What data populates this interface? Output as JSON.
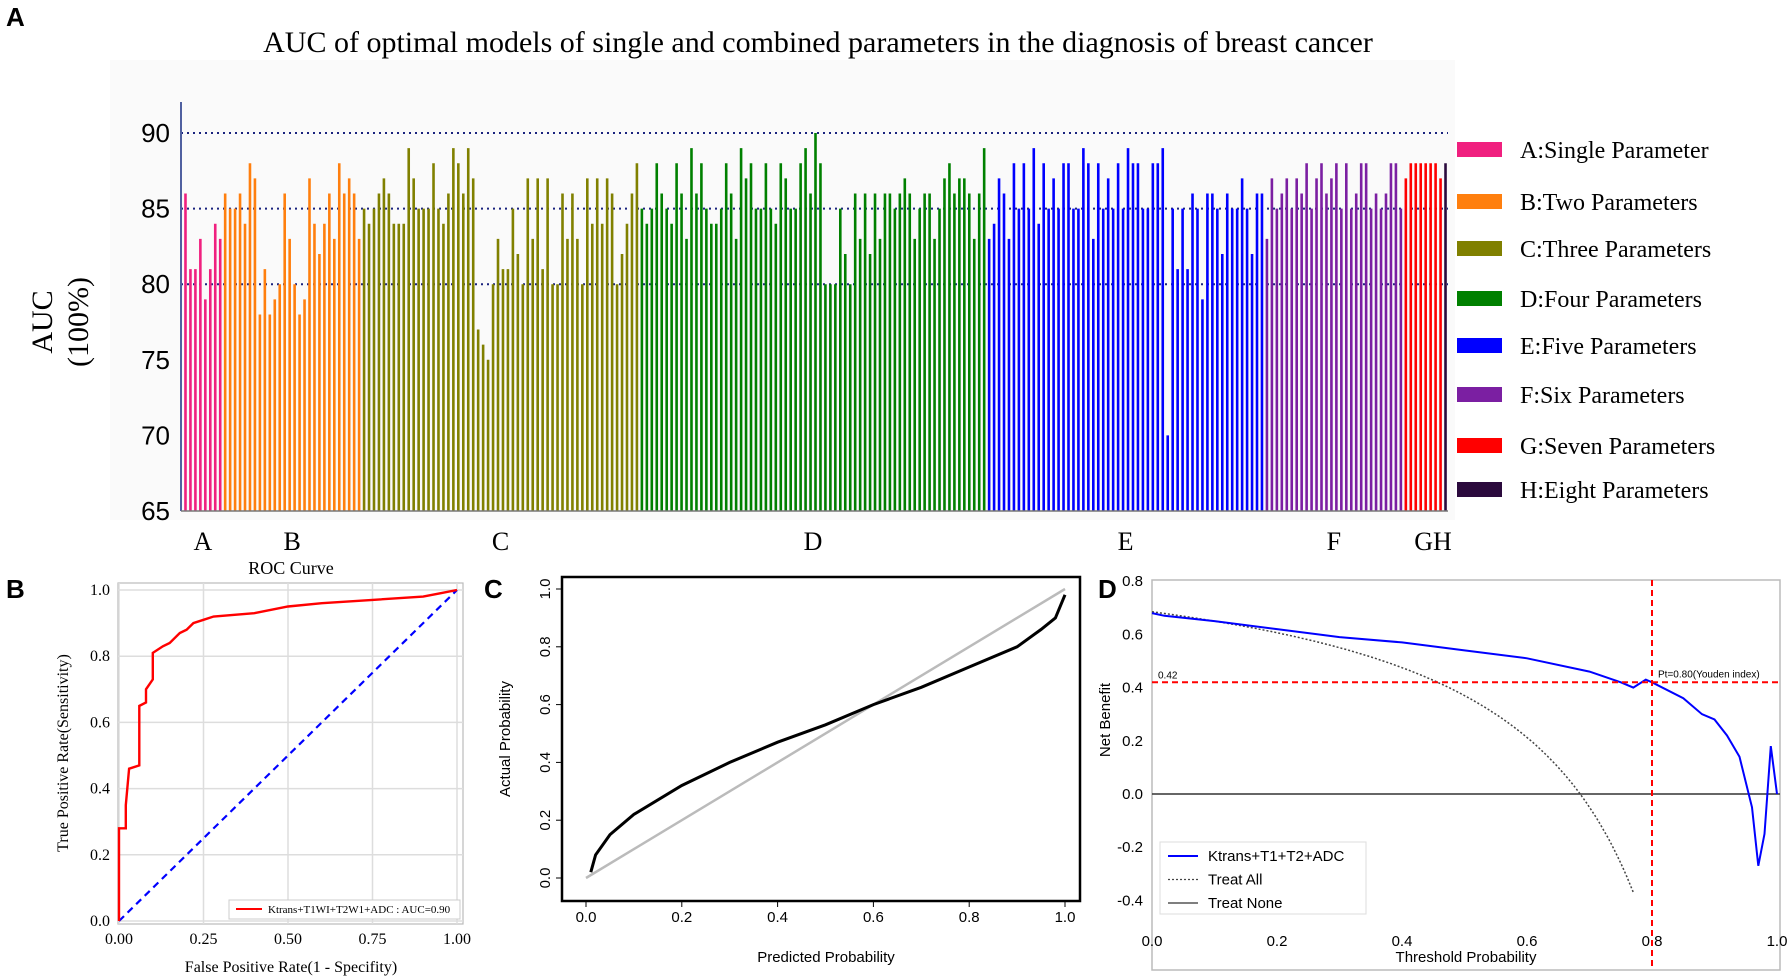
{
  "panel_labels": {
    "a": "A",
    "b": "B",
    "c": "C",
    "d": "D"
  },
  "chart_data": [
    {
      "panel": "A",
      "type": "bar",
      "title": "AUC of optimal models of single and combined parameters in the diagnosis of breast cancer",
      "ylabel": [
        "AUC",
        "(100%)"
      ],
      "ylim": [
        65,
        92
      ],
      "yticks": [
        "65",
        "70",
        "75",
        "80",
        "85",
        "90"
      ],
      "grid_values": [
        80,
        85,
        90
      ],
      "legend_position": "right",
      "groups": [
        {
          "axis_label": "A",
          "legend": "A:Single Parameter",
          "color": "#f0207f",
          "values": [
            86,
            81,
            81,
            83,
            79,
            81,
            84,
            83
          ]
        },
        {
          "axis_label": "B",
          "legend": "B:Two Parameters",
          "color": "#ff7f0e",
          "values": [
            86,
            85,
            85,
            86,
            84,
            88,
            87,
            78,
            81,
            78,
            79,
            80,
            86,
            83,
            80,
            78,
            79,
            87,
            84,
            82,
            84,
            86,
            83,
            88,
            86,
            87,
            86,
            83
          ]
        },
        {
          "axis_label": "C",
          "legend": "C:Three Parameters",
          "color": "#808000",
          "values": [
            85,
            84,
            85,
            86,
            87,
            86,
            84,
            84,
            84,
            89,
            87,
            85,
            85,
            85,
            88,
            85,
            84,
            86,
            89,
            88,
            86,
            89,
            87,
            77,
            76,
            75,
            80,
            83,
            81,
            81,
            85,
            82,
            80,
            87,
            83,
            87,
            81,
            87,
            80,
            80,
            86,
            83,
            86,
            83,
            80,
            87,
            84,
            87,
            84,
            87,
            86,
            80,
            82,
            84,
            86,
            88
          ]
        },
        {
          "axis_label": "D",
          "legend": "D:Four Parameters",
          "color": "#008000",
          "values": [
            85,
            84,
            85,
            88,
            86,
            85,
            84,
            88,
            86,
            83,
            89,
            86,
            88,
            85,
            84,
            84,
            85,
            88,
            86,
            83,
            89,
            87,
            88,
            85,
            85,
            88,
            85,
            84,
            88,
            87,
            85,
            85,
            88,
            89,
            86,
            90,
            88,
            80,
            80,
            80,
            85,
            82,
            80,
            86,
            83,
            86,
            82,
            86,
            83,
            86,
            86,
            85,
            86,
            87,
            86,
            83,
            85,
            86,
            86,
            83,
            85,
            87,
            88,
            86,
            87,
            87,
            86,
            83,
            86,
            89
          ]
        },
        {
          "axis_label": "E",
          "legend": "E:Five Parameters",
          "color": "#0000ff",
          "values": [
            83,
            84,
            87,
            86,
            83,
            88,
            85,
            88,
            85,
            89,
            84,
            88,
            85,
            87,
            85,
            88,
            88,
            85,
            85,
            89,
            88,
            83,
            88,
            85,
            87,
            85,
            88,
            85,
            89,
            88,
            88,
            85,
            85,
            88,
            88,
            89,
            70,
            85,
            81,
            85,
            81,
            86,
            85,
            79,
            86,
            86,
            85,
            82,
            86,
            85,
            85,
            87,
            85,
            82,
            86,
            86
          ]
        },
        {
          "axis_label": "F",
          "legend": "F:Six Parameters",
          "color": "#7b1fa2",
          "values": [
            83,
            87,
            85,
            86,
            87,
            85,
            87,
            86,
            88,
            85,
            87,
            88,
            86,
            87,
            88,
            85,
            88,
            85,
            86,
            88,
            88,
            85,
            86,
            85,
            86,
            88,
            88,
            85
          ]
        },
        {
          "axis_label": "G",
          "legend": "G:Seven Parameters",
          "color": "#ff0000",
          "values": [
            87,
            88,
            88,
            88,
            88,
            88,
            88,
            87
          ]
        },
        {
          "axis_label": "H",
          "legend": "H:Eight Parameters",
          "color": "#2b0a3d",
          "values": [
            88
          ]
        }
      ]
    },
    {
      "panel": "B",
      "type": "line",
      "title": "ROC Curve",
      "xlabel": "False Positive Rate(1 - Specifity)",
      "ylabel": "True Positive Rate(Sensitivity)",
      "xlim": [
        0,
        1
      ],
      "ylim": [
        0,
        1
      ],
      "xticks": [
        "0.00",
        "0.25",
        "0.50",
        "0.75",
        "1.00"
      ],
      "yticks": [
        "0.0",
        "0.2",
        "0.4",
        "0.6",
        "0.8",
        "1.0"
      ],
      "grid": true,
      "legend_position": "bottom-right",
      "series": [
        {
          "name": "Ktrans+T1WI+T2W1+ADC : AUC=0.90",
          "color": "#ff0000",
          "points": [
            [
              0,
              0
            ],
            [
              0,
              0.28
            ],
            [
              0.02,
              0.28
            ],
            [
              0.02,
              0.35
            ],
            [
              0.03,
              0.46
            ],
            [
              0.06,
              0.47
            ],
            [
              0.06,
              0.65
            ],
            [
              0.08,
              0.66
            ],
            [
              0.08,
              0.7
            ],
            [
              0.1,
              0.73
            ],
            [
              0.1,
              0.81
            ],
            [
              0.13,
              0.83
            ],
            [
              0.15,
              0.84
            ],
            [
              0.18,
              0.87
            ],
            [
              0.2,
              0.88
            ],
            [
              0.22,
              0.9
            ],
            [
              0.25,
              0.91
            ],
            [
              0.28,
              0.92
            ],
            [
              0.4,
              0.93
            ],
            [
              0.5,
              0.95
            ],
            [
              0.6,
              0.96
            ],
            [
              0.75,
              0.97
            ],
            [
              0.9,
              0.98
            ],
            [
              0.95,
              0.99
            ],
            [
              1,
              1
            ]
          ]
        },
        {
          "name": "chance",
          "color": "#0000ff",
          "points": [
            [
              0,
              0
            ],
            [
              1,
              1
            ]
          ]
        }
      ]
    },
    {
      "panel": "C",
      "type": "line",
      "xlabel": "Predicted Probability",
      "ylabel": "Actual Probability",
      "xlim": [
        0,
        1
      ],
      "ylim": [
        0,
        1
      ],
      "xticks": [
        "0.0",
        "0.2",
        "0.4",
        "0.6",
        "0.8",
        "1.0"
      ],
      "yticks": [
        "0.0",
        "0.2",
        "0.4",
        "0.6",
        "0.8",
        "1.0"
      ],
      "series": [
        {
          "name": "calibration",
          "color": "#000000",
          "points": [
            [
              0.01,
              0.02
            ],
            [
              0.02,
              0.08
            ],
            [
              0.05,
              0.15
            ],
            [
              0.1,
              0.22
            ],
            [
              0.2,
              0.32
            ],
            [
              0.3,
              0.4
            ],
            [
              0.4,
              0.47
            ],
            [
              0.5,
              0.53
            ],
            [
              0.6,
              0.6
            ],
            [
              0.7,
              0.66
            ],
            [
              0.8,
              0.73
            ],
            [
              0.9,
              0.8
            ],
            [
              0.95,
              0.86
            ],
            [
              0.98,
              0.9
            ],
            [
              1.0,
              0.98
            ]
          ]
        },
        {
          "name": "ideal",
          "color": "#bbbbbb",
          "points": [
            [
              0,
              0
            ],
            [
              1,
              1
            ]
          ]
        }
      ]
    },
    {
      "panel": "D",
      "type": "line",
      "xlabel": "Threshold Probability",
      "ylabel": "Net Benefit",
      "xlim": [
        0,
        1
      ],
      "ylim": [
        -0.48,
        0.8
      ],
      "xticks": [
        "0.0",
        "0.2",
        "0.4",
        "0.6",
        "0.8",
        "1.0"
      ],
      "yticks": [
        "-0.4",
        "-0.2",
        "0.0",
        "0.2",
        "0.4",
        "0.6",
        "0.8"
      ],
      "legend_position": "bottom-left",
      "cutoff": {
        "threshold": 0.8,
        "net_benefit": 0.42,
        "value_label": "0.42",
        "threshold_label": "Pt=0.80(Youden index)"
      },
      "treat_all_prevalence": 0.685,
      "series": [
        {
          "name": "Ktrans+T1+T2+ADC",
          "color": "#0000ff",
          "points": [
            [
              0,
              0.68
            ],
            [
              0.02,
              0.67
            ],
            [
              0.1,
              0.65
            ],
            [
              0.2,
              0.62
            ],
            [
              0.3,
              0.59
            ],
            [
              0.4,
              0.57
            ],
            [
              0.5,
              0.54
            ],
            [
              0.6,
              0.51
            ],
            [
              0.7,
              0.46
            ],
            [
              0.75,
              0.42
            ],
            [
              0.77,
              0.4
            ],
            [
              0.79,
              0.43
            ],
            [
              0.8,
              0.42
            ],
            [
              0.85,
              0.36
            ],
            [
              0.88,
              0.3
            ],
            [
              0.9,
              0.28
            ],
            [
              0.92,
              0.22
            ],
            [
              0.94,
              0.14
            ],
            [
              0.96,
              -0.05
            ],
            [
              0.97,
              -0.27
            ],
            [
              0.98,
              -0.15
            ],
            [
              0.99,
              0.18
            ],
            [
              1.0,
              0.0
            ]
          ]
        },
        {
          "name": "Treat All",
          "color": "#444444"
        },
        {
          "name": "Treat None",
          "color": "#333333"
        }
      ]
    }
  ]
}
